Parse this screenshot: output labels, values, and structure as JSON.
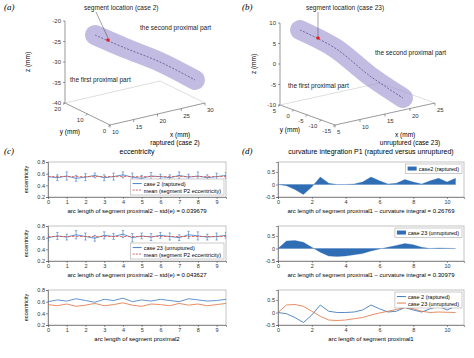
{
  "chart_data": [
    {
      "type": "3d",
      "panel": "(a)",
      "subtitle": "raptured (case 2)",
      "xlabel": "x (mm)",
      "ylabel": "y (mm)",
      "zlabel": "z (mm)",
      "xlim": [
        10,
        30
      ],
      "xticks": [
        10,
        15,
        20,
        25,
        30
      ],
      "ylim": [
        0,
        20
      ],
      "yticks": [
        0,
        10,
        20
      ],
      "zlim": [
        -40,
        -20
      ],
      "zticks": [
        -40,
        -35,
        -30,
        -25,
        -20
      ],
      "annotations": [
        "segment location (case 2)",
        "the first proximal part",
        "the second proximal part"
      ]
    },
    {
      "type": "3d",
      "panel": "(b)",
      "subtitle": "unruptured (case 23)",
      "xlabel": "x (mm)",
      "ylabel": "y (mm)",
      "zlabel": "z (mm)",
      "xlim": [
        5,
        25
      ],
      "xticks": [
        5,
        10,
        15,
        20,
        25
      ],
      "ylim": [
        -15,
        5
      ],
      "yticks": [
        -15,
        -10,
        -5,
        0,
        5
      ],
      "zlim": [
        -10,
        10
      ],
      "zticks": [
        -10,
        -5,
        0,
        5,
        10
      ],
      "annotations": [
        "segment location (case 23)",
        "the first proximal part",
        "the second proximal part"
      ]
    },
    {
      "type": "errorbar",
      "panel": "(c)",
      "title": "eccentricity",
      "xlabel": "arc length of segment proximal2 – std(e) = 0.039679",
      "ylabel": "eccentricity",
      "xlim": [
        0,
        9.5
      ],
      "xticks": [
        0,
        1,
        2,
        3,
        4,
        5,
        6,
        7,
        8,
        9
      ],
      "ylim": [
        0.2,
        0.8
      ],
      "yticks": [
        0.2,
        0.4,
        0.6,
        0.8
      ],
      "legend": "lower right",
      "series": [
        {
          "name": "case 2 (raptured)",
          "type": "errorbar",
          "color": "#3a78c2",
          "x": [
            0,
            0.5,
            1,
            1.5,
            2,
            2.5,
            3,
            3.5,
            4,
            4.5,
            5,
            5.5,
            6,
            6.5,
            7,
            7.5,
            8,
            8.5,
            9,
            9.5
          ],
          "values": [
            0.55,
            0.53,
            0.56,
            0.52,
            0.54,
            0.57,
            0.53,
            0.55,
            0.58,
            0.54,
            0.52,
            0.56,
            0.55,
            0.53,
            0.57,
            0.54,
            0.56,
            0.53,
            0.55,
            0.57
          ],
          "errors": [
            0.06,
            0.05,
            0.07,
            0.05,
            0.06,
            0.04,
            0.05,
            0.06,
            0.05,
            0.07,
            0.05,
            0.06,
            0.04,
            0.05,
            0.06,
            0.05,
            0.07,
            0.05,
            0.06,
            0.05
          ]
        },
        {
          "name": "mean (segment P2 eccentricity)",
          "type": "line",
          "line_style": "dashed",
          "color": "#d9534f",
          "x": [
            0,
            9.5
          ],
          "values": [
            0.55,
            0.55
          ]
        }
      ]
    },
    {
      "type": "errorbar",
      "xlabel": "arc length of segment proximal2 – std(e) = 0.043627",
      "ylabel": "eccentricity",
      "xlim": [
        0,
        9.5
      ],
      "xticks": [
        0,
        1,
        2,
        3,
        4,
        5,
        6,
        7,
        8,
        9
      ],
      "ylim": [
        0.2,
        0.8
      ],
      "yticks": [
        0.2,
        0.4,
        0.6,
        0.8
      ],
      "legend": "lower right",
      "series": [
        {
          "name": "case 23 (unruptured)",
          "type": "errorbar",
          "color": "#3a78c2",
          "x": [
            0,
            0.5,
            1,
            1.5,
            2,
            2.5,
            3,
            3.5,
            4,
            4.5,
            5,
            5.5,
            6,
            6.5,
            7,
            7.5,
            8,
            8.5,
            9,
            9.5
          ],
          "values": [
            0.6,
            0.63,
            0.61,
            0.65,
            0.62,
            0.59,
            0.64,
            0.62,
            0.66,
            0.6,
            0.63,
            0.61,
            0.64,
            0.62,
            0.6,
            0.65,
            0.63,
            0.61,
            0.62,
            0.64
          ],
          "errors": [
            0.05,
            0.06,
            0.05,
            0.07,
            0.06,
            0.05,
            0.06,
            0.05,
            0.06,
            0.07,
            0.05,
            0.06,
            0.05,
            0.06,
            0.05,
            0.06,
            0.07,
            0.05,
            0.06,
            0.05
          ]
        },
        {
          "name": "mean (segment P2 eccentricity)",
          "type": "line",
          "line_style": "dashed",
          "color": "#d9534f",
          "x": [
            0,
            9.5
          ],
          "values": [
            0.62,
            0.62
          ]
        }
      ]
    },
    {
      "type": "line",
      "xlabel": "arc length of segment proximal2",
      "ylabel": "eccentricity",
      "xlim": [
        0,
        9.5
      ],
      "xticks": [
        0,
        1,
        2,
        3,
        4,
        5,
        6,
        7,
        8,
        9
      ],
      "ylim": [
        0.2,
        0.8
      ],
      "yticks": [
        0.2,
        0.4,
        0.6,
        0.8
      ],
      "series": [
        {
          "color": "#e0703c",
          "x": [
            0,
            0.5,
            1,
            1.5,
            2,
            2.5,
            3,
            3.5,
            4,
            4.5,
            5,
            5.5,
            6,
            6.5,
            7,
            7.5,
            8,
            8.5,
            9,
            9.5
          ],
          "values": [
            0.55,
            0.53,
            0.56,
            0.52,
            0.54,
            0.57,
            0.53,
            0.55,
            0.58,
            0.54,
            0.52,
            0.56,
            0.55,
            0.53,
            0.57,
            0.54,
            0.56,
            0.53,
            0.55,
            0.57
          ]
        },
        {
          "color": "#3a78c2",
          "x": [
            0,
            0.5,
            1,
            1.5,
            2,
            2.5,
            3,
            3.5,
            4,
            4.5,
            5,
            5.5,
            6,
            6.5,
            7,
            7.5,
            8,
            8.5,
            9,
            9.5
          ],
          "values": [
            0.6,
            0.63,
            0.61,
            0.65,
            0.62,
            0.59,
            0.64,
            0.62,
            0.66,
            0.6,
            0.63,
            0.61,
            0.64,
            0.62,
            0.6,
            0.65,
            0.63,
            0.61,
            0.62,
            0.64
          ]
        }
      ]
    },
    {
      "type": "area",
      "panel": "(d)",
      "title": "curvature integration P1 (raptured versus unruptured)",
      "xlabel": "arc length of segment proximal1 – curvature integral = 0.26769",
      "xlim": [
        0,
        11
      ],
      "xticks": [
        0,
        2,
        4,
        6,
        8,
        10
      ],
      "ylim": [
        -0.5,
        0.9
      ],
      "yticks": [
        -0.5,
        0,
        0.5
      ],
      "legend": "upper right",
      "series": [
        {
          "name": "case2 (raptured)",
          "color": "#2f6db5",
          "x": [
            0,
            0.5,
            1,
            1.5,
            2,
            2.5,
            3,
            3.5,
            4,
            4.5,
            5,
            5.5,
            6,
            6.5,
            7,
            7.5,
            8,
            8.5,
            9,
            9.5,
            10,
            10.5
          ],
          "values": [
            0,
            -0.05,
            -0.2,
            -0.4,
            -0.1,
            0.3,
            0.05,
            0,
            0,
            0.02,
            0.1,
            0.3,
            0.15,
            0.02,
            0.05,
            0.2,
            0.1,
            0.02,
            0.15,
            0.25,
            0.1,
            0.25
          ]
        }
      ]
    },
    {
      "type": "area",
      "xlabel": "arc length of segment proximal1 – curvature integral = 0.30979",
      "xlim": [
        0,
        11
      ],
      "xticks": [
        0,
        2,
        4,
        6,
        8,
        10
      ],
      "ylim": [
        -0.5,
        0.9
      ],
      "yticks": [
        -0.5,
        0,
        0.5
      ],
      "legend": "upper right",
      "series": [
        {
          "name": "case 23 (unruptured)",
          "color": "#2f6db5",
          "x": [
            0,
            0.5,
            1,
            1.5,
            2,
            2.5,
            3,
            3.5,
            4,
            4.5,
            5,
            5.5,
            6,
            6.5,
            7,
            7.5,
            8,
            8.5,
            9,
            9.5,
            10,
            10.5
          ],
          "values": [
            0,
            0.3,
            0.32,
            0.25,
            0.05,
            -0.15,
            -0.3,
            -0.32,
            -0.3,
            -0.25,
            -0.2,
            -0.1,
            -0.02,
            0.05,
            0.12,
            0.2,
            0.15,
            0.05,
            0,
            0.02,
            0.01,
            0
          ]
        }
      ]
    },
    {
      "type": "line",
      "xlabel": "arc length of segment proximal1",
      "xlim": [
        0,
        11
      ],
      "xticks": [
        0,
        2,
        4,
        6,
        8,
        10
      ],
      "ylim": [
        -0.5,
        0.9
      ],
      "yticks": [
        -0.5,
        0,
        0.5
      ],
      "legend": "upper right",
      "series": [
        {
          "name": "case 2 (raptured)",
          "color": "#2f6db5",
          "x": [
            0,
            0.5,
            1,
            1.5,
            2,
            2.5,
            3,
            3.5,
            4,
            4.5,
            5,
            5.5,
            6,
            6.5,
            7,
            7.5,
            8,
            8.5,
            9,
            9.5,
            10,
            10.5
          ],
          "values": [
            0,
            -0.05,
            -0.2,
            -0.4,
            -0.1,
            0.3,
            0.05,
            0,
            0,
            0.02,
            0.1,
            0.3,
            0.15,
            0.02,
            0.05,
            0.2,
            0.1,
            0.02,
            0.15,
            0.25,
            0.1,
            0.25
          ]
        },
        {
          "name": "case 23 (unruptured)",
          "color": "#e0703c",
          "x": [
            0,
            0.5,
            1,
            1.5,
            2,
            2.5,
            3,
            3.5,
            4,
            4.5,
            5,
            5.5,
            6,
            6.5,
            7,
            7.5,
            8,
            8.5,
            9,
            9.5,
            10,
            10.5
          ],
          "values": [
            0,
            0.3,
            0.32,
            0.25,
            0.05,
            -0.15,
            -0.3,
            -0.32,
            -0.3,
            -0.25,
            -0.2,
            -0.1,
            -0.02,
            0.05,
            0.12,
            0.2,
            0.15,
            0.05,
            0,
            0.02,
            0.01,
            0
          ]
        }
      ]
    }
  ]
}
